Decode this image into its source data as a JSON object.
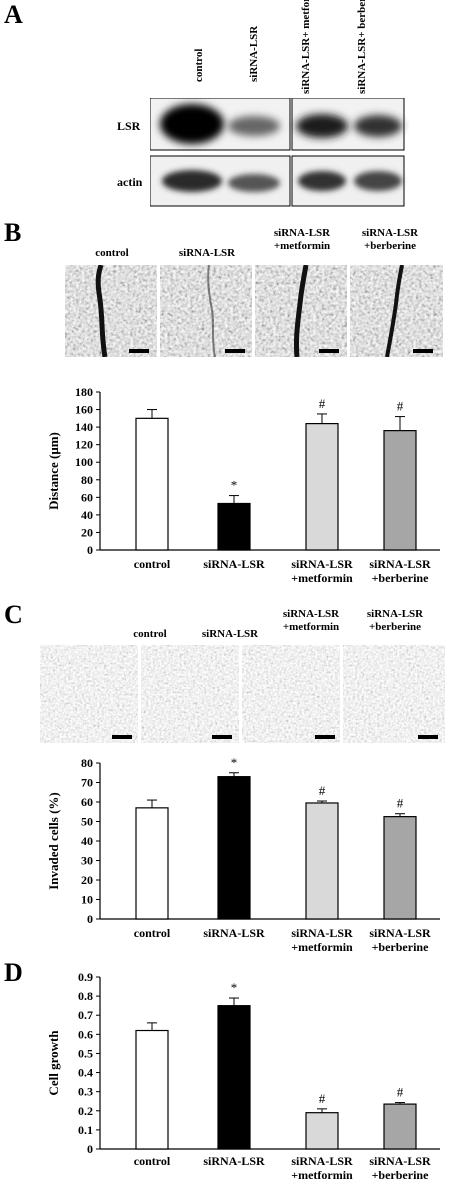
{
  "panelA": {
    "letter": "A",
    "lanes": [
      "control",
      "siRNA-LSR",
      "siRNA-LSR+ metformin",
      "siRNA-LSR+ berberine"
    ],
    "rows": [
      "LSR",
      "actin"
    ]
  },
  "panelB": {
    "letter": "B",
    "image_labels": [
      "control",
      "siRNA-LSR",
      "siRNA-LSR +metformin",
      "siRNA-LSR +berberine"
    ]
  },
  "panelC": {
    "letter": "C",
    "image_labels": [
      "control",
      "siRNA-LSR",
      "siRNA-LSR +metformin",
      "siRNA-LSR +berberine"
    ]
  },
  "panelD": {
    "letter": "D"
  },
  "chart_data": [
    {
      "type": "bar",
      "categories": [
        "control",
        "siRNA-LSR",
        "siRNA-LSR\n+metformin",
        "siRNA-LSR\n+berberine"
      ],
      "values": [
        150,
        53,
        144,
        136
      ],
      "errors": [
        10,
        9,
        11,
        16
      ],
      "annotations": [
        "",
        "*",
        "#",
        "#"
      ],
      "ylabel": "Distance (μm)",
      "ylim": [
        0,
        180
      ],
      "yticks": [
        0,
        20,
        40,
        60,
        80,
        100,
        120,
        140,
        160,
        180
      ],
      "colors": [
        "#ffffff",
        "#000000",
        "#d9d9d9",
        "#a6a6a6"
      ]
    },
    {
      "type": "bar",
      "categories": [
        "control",
        "siRNA-LSR",
        "siRNA-LSR\n+metformin",
        "siRNA-LSR\n+berberine"
      ],
      "values": [
        57,
        73,
        59.5,
        52.5
      ],
      "errors": [
        4,
        2,
        1,
        1.5
      ],
      "annotations": [
        "",
        "*",
        "#",
        "#"
      ],
      "ylabel": "Invaded cells (%)",
      "ylim": [
        0,
        80
      ],
      "yticks": [
        0,
        10,
        20,
        30,
        40,
        50,
        60,
        70,
        80
      ],
      "colors": [
        "#ffffff",
        "#000000",
        "#d9d9d9",
        "#a6a6a6"
      ]
    },
    {
      "type": "bar",
      "categories": [
        "control",
        "siRNA-LSR",
        "siRNA-LSR\n+metformin",
        "siRNA-LSR\n+berberine"
      ],
      "values": [
        0.62,
        0.75,
        0.19,
        0.235
      ],
      "errors": [
        0.04,
        0.04,
        0.02,
        0.008
      ],
      "annotations": [
        "",
        "*",
        "#",
        "#"
      ],
      "ylabel": "Cell growth",
      "ylim": [
        0,
        0.9
      ],
      "yticks": [
        "0",
        "0.1",
        "0.2",
        "0.3",
        "0.4",
        "0.5",
        "0.6",
        "0.7",
        "0.8",
        "0.9"
      ],
      "colors": [
        "#ffffff",
        "#000000",
        "#d9d9d9",
        "#a6a6a6"
      ]
    }
  ]
}
